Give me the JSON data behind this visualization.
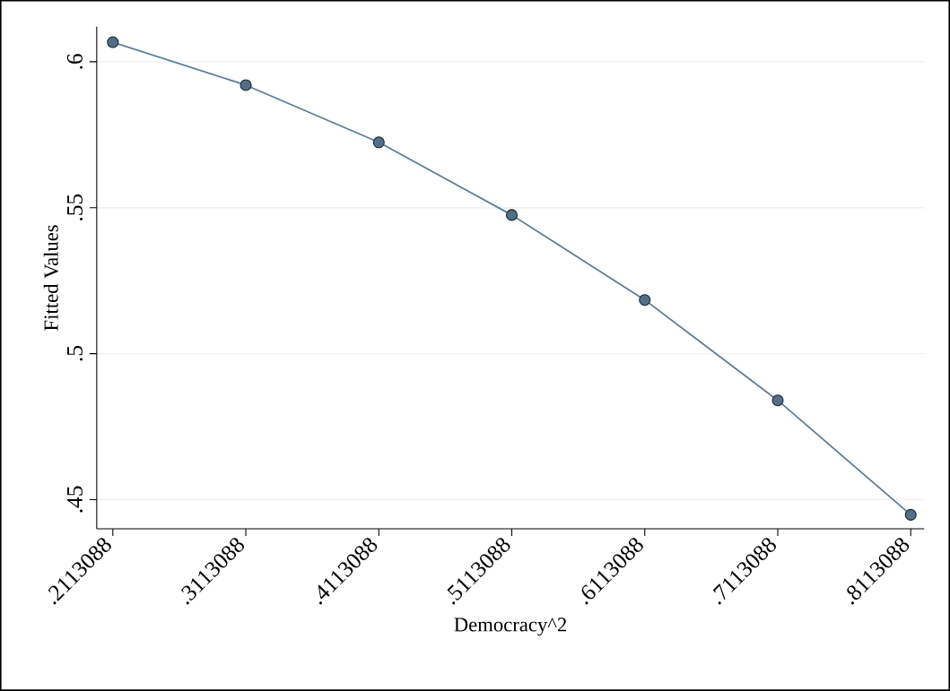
{
  "chart_data": {
    "type": "line",
    "xlabel": "Democracy^2",
    "ylabel": "Fitted Values",
    "x": [
      0.2113088,
      0.3113088,
      0.4113088,
      0.5113088,
      0.6113088,
      0.7113088,
      0.8113088
    ],
    "values": [
      0.6067,
      0.592,
      0.5724,
      0.5475,
      0.5184,
      0.484,
      0.4448
    ],
    "color": "#5b7b98",
    "marker": "circle",
    "line_style": "solid",
    "grid": "y",
    "xlim": [
      0.1992,
      0.8214
    ],
    "ylim": [
      0.44,
      0.612
    ],
    "xticks": [
      {
        "value": 0.2113088,
        "label": ".2113088"
      },
      {
        "value": 0.3113088,
        "label": ".3113088"
      },
      {
        "value": 0.4113088,
        "label": ".4113088"
      },
      {
        "value": 0.5113088,
        "label": ".5113088"
      },
      {
        "value": 0.6113088,
        "label": ".6113088"
      },
      {
        "value": 0.7113088,
        "label": ".7113088"
      },
      {
        "value": 0.8113088,
        "label": ".8113088"
      }
    ],
    "yticks": [
      {
        "value": 0.45,
        "label": ".45"
      },
      {
        "value": 0.5,
        "label": ".5"
      },
      {
        "value": 0.55,
        "label": ".55"
      },
      {
        "value": 0.6,
        "label": ".6"
      }
    ]
  }
}
